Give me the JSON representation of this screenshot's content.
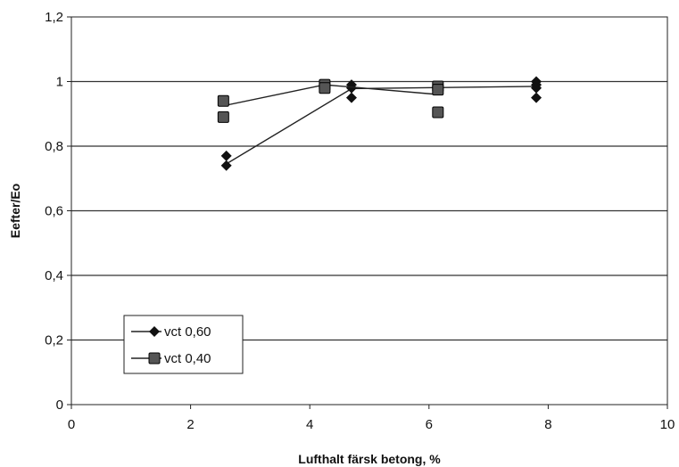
{
  "chart_data": {
    "type": "scatter",
    "title": "",
    "xlabel": "Lufthalt färsk betong, %",
    "ylabel": "Eefter/Eo",
    "xlim": [
      0,
      10
    ],
    "ylim": [
      0,
      1.2
    ],
    "x_ticks": [
      {
        "value": 0,
        "label": "0"
      },
      {
        "value": 2,
        "label": "2"
      },
      {
        "value": 4,
        "label": "4"
      },
      {
        "value": 6,
        "label": "6"
      },
      {
        "value": 8,
        "label": "8"
      },
      {
        "value": 10,
        "label": "10"
      }
    ],
    "y_ticks": [
      {
        "value": 0,
        "label": "0"
      },
      {
        "value": 0.2,
        "label": "0,2"
      },
      {
        "value": 0.4,
        "label": "0,4"
      },
      {
        "value": 0.6,
        "label": "0,6"
      },
      {
        "value": 0.8,
        "label": "0,8"
      },
      {
        "value": 1.0,
        "label": "1"
      },
      {
        "value": 1.2,
        "label": "1,2"
      }
    ],
    "grid": "horizontal",
    "legend_position": "bottom-left",
    "series": [
      {
        "name": "vct 0,60",
        "marker": "diamond",
        "color": "#111111",
        "points": [
          {
            "x": 2.6,
            "y": 0.77
          },
          {
            "x": 2.6,
            "y": 0.74
          },
          {
            "x": 4.7,
            "y": 0.99
          },
          {
            "x": 4.7,
            "y": 0.98
          },
          {
            "x": 4.7,
            "y": 0.95
          },
          {
            "x": 7.8,
            "y": 1.0
          },
          {
            "x": 7.8,
            "y": 0.99
          },
          {
            "x": 7.8,
            "y": 0.98
          },
          {
            "x": 7.8,
            "y": 0.95
          }
        ],
        "line": [
          {
            "x": 2.6,
            "y": 0.745
          },
          {
            "x": 4.7,
            "y": 0.978
          },
          {
            "x": 7.8,
            "y": 0.985
          }
        ]
      },
      {
        "name": "vct 0,40",
        "marker": "square",
        "color": "#555555",
        "points": [
          {
            "x": 2.55,
            "y": 0.94
          },
          {
            "x": 2.55,
            "y": 0.89
          },
          {
            "x": 4.25,
            "y": 0.99
          },
          {
            "x": 4.25,
            "y": 0.98
          },
          {
            "x": 6.15,
            "y": 0.985
          },
          {
            "x": 6.15,
            "y": 0.975
          },
          {
            "x": 6.15,
            "y": 0.905
          }
        ],
        "line": [
          {
            "x": 2.55,
            "y": 0.925
          },
          {
            "x": 4.25,
            "y": 0.99
          },
          {
            "x": 6.15,
            "y": 0.96
          }
        ]
      }
    ]
  }
}
